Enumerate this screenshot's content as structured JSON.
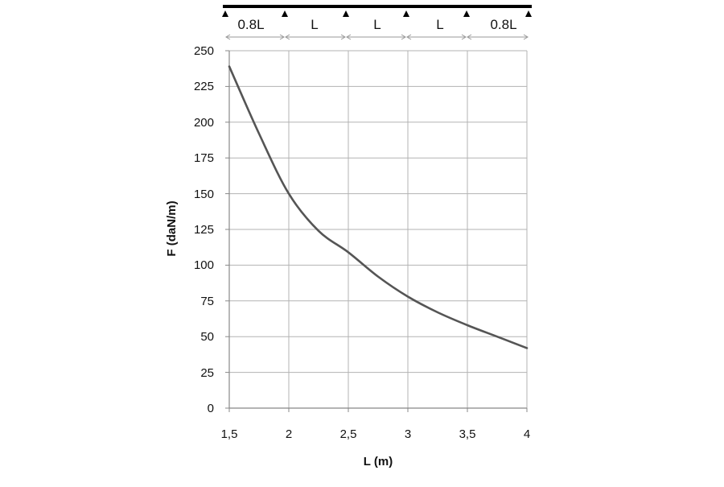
{
  "beam_diagram": {
    "spans": [
      "0.8L",
      "L",
      "L",
      "L",
      "0.8L"
    ]
  },
  "chart_data": {
    "type": "line",
    "xlabel": "L (m)",
    "ylabel": "F  (daN/m)",
    "xlim": [
      1.5,
      4
    ],
    "ylim": [
      0,
      250
    ],
    "x_ticks": [
      "1,5",
      "2",
      "2,5",
      "3",
      "3,5",
      "4"
    ],
    "y_ticks": [
      "0",
      "25",
      "50",
      "75",
      "100",
      "125",
      "150",
      "175",
      "200",
      "225",
      "250"
    ],
    "grid": true,
    "series": [
      {
        "color": "#555555",
        "x": [
          1.5,
          1.75,
          2.0,
          2.25,
          2.5,
          2.75,
          3.0,
          3.25,
          3.5,
          3.75,
          4.0
        ],
        "y": [
          239,
          192,
          150,
          124,
          109,
          92,
          78,
          67,
          58,
          50,
          42
        ]
      }
    ]
  }
}
